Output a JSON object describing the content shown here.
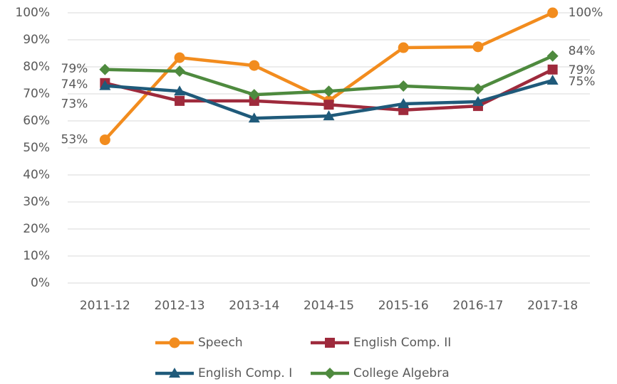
{
  "chart_data": {
    "type": "line",
    "categories": [
      "2011-12",
      "2012-13",
      "2013-14",
      "2014-15",
      "2015-16",
      "2016-17",
      "2017-18"
    ],
    "series": [
      {
        "name": "Speech",
        "color": "#f28c1e",
        "marker": "circle",
        "values": [
          53,
          83.4,
          80.5,
          67.4,
          87.1,
          87.4,
          100
        ],
        "value_labels": [
          "53%",
          null,
          null,
          null,
          null,
          null,
          "100%"
        ]
      },
      {
        "name": "English Comp. II",
        "color": "#9e2a3c",
        "marker": "square",
        "values": [
          74,
          67.4,
          67.4,
          66,
          64,
          65.5,
          79
        ],
        "value_labels": [
          "74%",
          null,
          null,
          null,
          null,
          null,
          "79%"
        ]
      },
      {
        "name": "English Comp. I",
        "color": "#1f5a7a",
        "marker": "triangle",
        "values": [
          73,
          71,
          61,
          61.8,
          66.3,
          67.1,
          75
        ],
        "value_labels": [
          "73%",
          null,
          null,
          null,
          null,
          null,
          "75%"
        ]
      },
      {
        "name": "College Algebra",
        "color": "#4e8a3e",
        "marker": "diamond",
        "values": [
          79,
          78.4,
          69.7,
          71,
          72.9,
          71.8,
          84
        ],
        "value_labels": [
          "79%",
          null,
          null,
          null,
          null,
          null,
          "84%"
        ]
      }
    ],
    "ylim": [
      0,
      100
    ],
    "yticks": [
      {
        "value": 0,
        "label": "0%"
      },
      {
        "value": 10,
        "label": "10%"
      },
      {
        "value": 20,
        "label": "20%"
      },
      {
        "value": 30,
        "label": "30%"
      },
      {
        "value": 40,
        "label": "40%"
      },
      {
        "value": 50,
        "label": "50%"
      },
      {
        "value": 60,
        "label": "60%"
      },
      {
        "value": 70,
        "label": "70%"
      },
      {
        "value": 80,
        "label": "80%"
      },
      {
        "value": 90,
        "label": "90%"
      },
      {
        "value": 100,
        "label": "100%"
      }
    ],
    "grid": true,
    "legend": "bottom"
  }
}
